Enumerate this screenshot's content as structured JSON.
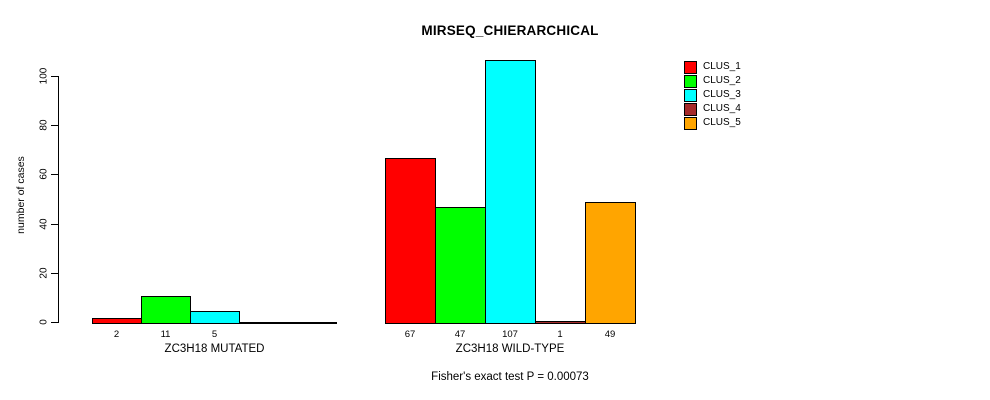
{
  "title": "MIRSEQ_CHIERARCHICAL",
  "footnote": "Fisher's exact test P = 0.00073",
  "chart_data": {
    "type": "bar",
    "title": "MIRSEQ_CHIERARCHICAL",
    "xlabel": "",
    "ylabel": "number of cases",
    "ylim": [
      0,
      100
    ],
    "yticks": [
      0,
      20,
      40,
      60,
      80,
      100
    ],
    "grid": false,
    "legend_position": "top-right",
    "series_colors": [
      "#FF0000",
      "#00FF00",
      "#00FFFF",
      "#A52A2A",
      "#FFA500"
    ],
    "legend": [
      {
        "label": "CLUS_1",
        "color": "#FF0000"
      },
      {
        "label": "CLUS_2",
        "color": "#00FF00"
      },
      {
        "label": "CLUS_3",
        "color": "#00FFFF"
      },
      {
        "label": "CLUS_4",
        "color": "#A52A2A"
      },
      {
        "label": "CLUS_5",
        "color": "#FFA500"
      }
    ],
    "groups": [
      {
        "label": "ZC3H18 MUTATED",
        "series": [
          "CLUS_1",
          "CLUS_2",
          "CLUS_3",
          "CLUS_4",
          "CLUS_5"
        ],
        "values": [
          2,
          11,
          5,
          0,
          0
        ],
        "value_labels": [
          "2",
          "11",
          "5",
          "",
          ""
        ]
      },
      {
        "label": "ZC3H18 WILD-TYPE",
        "series": [
          "CLUS_1",
          "CLUS_2",
          "CLUS_3",
          "CLUS_4",
          "CLUS_5"
        ],
        "values": [
          67,
          47,
          107,
          1,
          49
        ],
        "value_labels": [
          "67",
          "47",
          "107",
          "1",
          "49"
        ]
      }
    ],
    "annotation": "Fisher's exact test P = 0.00073"
  }
}
